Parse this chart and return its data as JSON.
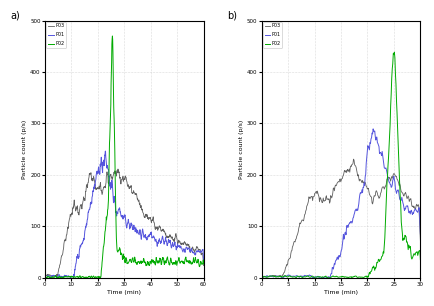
{
  "subplot_a": {
    "label": "a)",
    "xlabel": "Time (min)",
    "ylabel": "Particle count (p/s)",
    "xlim": [
      0,
      60
    ],
    "ylim": [
      0,
      500
    ],
    "yticks": [
      0,
      100,
      200,
      300,
      400,
      500
    ],
    "xticks": [
      0,
      10,
      20,
      30,
      40,
      50,
      60
    ],
    "legend": [
      "P01",
      "P02",
      "P03"
    ]
  },
  "subplot_b": {
    "label": "b)",
    "xlabel": "Time (min)",
    "ylabel": "Particle count (p/s)",
    "xlim": [
      0,
      30
    ],
    "ylim": [
      0,
      500
    ],
    "yticks": [
      0,
      100,
      200,
      300,
      400,
      500
    ],
    "xticks": [
      0,
      5,
      10,
      15,
      20,
      25,
      30
    ],
    "legend": [
      "P01",
      "P02",
      "P03"
    ]
  },
  "colors": {
    "P01": "#5555dd",
    "P02": "#00aa00",
    "P03": "#444444"
  },
  "background": "#ffffff",
  "fig_background": "#ffffff"
}
